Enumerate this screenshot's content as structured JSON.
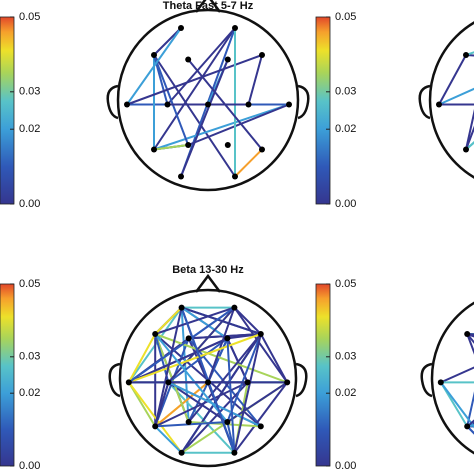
{
  "panels": [
    {
      "title": null,
      "colorbar": {
        "lim": [
          0,
          0.05
        ],
        "ticks": [
          0.05,
          0.03,
          0.02,
          {
            "value": 0,
            "label": "0.00"
          }
        ]
      }
    },
    {
      "title": "Theta Fast 5-7 Hz",
      "colorbar": {
        "lim": [
          0,
          0.05
        ],
        "ticks": [
          0.05,
          0.03,
          0.02,
          {
            "value": 0,
            "label": "0.00"
          }
        ]
      }
    },
    {
      "title": null,
      "colorbar": {
        "lim": [
          0,
          0.05
        ],
        "ticks": [
          0.05,
          0.03,
          0.02,
          {
            "value": 0,
            "label": "0.00"
          }
        ]
      }
    },
    {
      "title": "Beta 13-30 Hz",
      "colorbar": {
        "lim": [
          0,
          0.05
        ],
        "ticks": [
          0.05,
          0.03,
          0.02,
          {
            "value": 0,
            "label": "0.00"
          }
        ]
      }
    }
  ]
}
